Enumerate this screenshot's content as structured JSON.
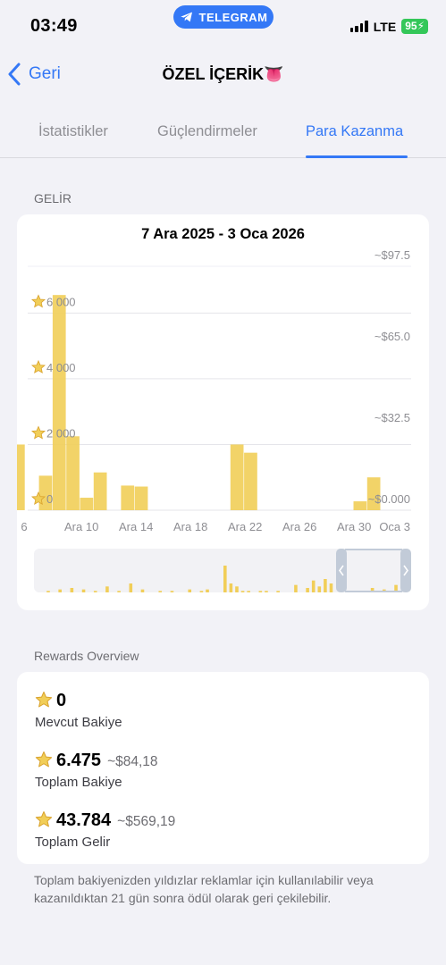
{
  "status_bar": {
    "time": "03:49",
    "telegram_pill": "TELEGRAM",
    "network": "LTE",
    "battery": "95"
  },
  "nav": {
    "back_label": "Geri",
    "title": "ÖZEL İÇERİK👅"
  },
  "tabs": [
    {
      "label": "İstatistikler",
      "active": false
    },
    {
      "label": "Güçlendirmeler",
      "active": false
    },
    {
      "label": "Para Kazanma",
      "active": true
    }
  ],
  "income_section": {
    "label": "GELİR"
  },
  "chart_data": {
    "type": "bar",
    "title": "7 Ara 2025 - 3 Oca 2026",
    "xlabel": "",
    "ylabel": "",
    "categories": [
      "6 Ara",
      "7 Ara",
      "8 Ara",
      "9 Ara",
      "10 Ara",
      "11 Ara",
      "12 Ara",
      "13 Ara",
      "14 Ara",
      "15 Ara",
      "16 Ara",
      "17 Ara",
      "18 Ara",
      "19 Ara",
      "20 Ara",
      "21 Ara",
      "22 Ara",
      "23 Ara",
      "24 Ara",
      "25 Ara",
      "26 Ara",
      "27 Ara",
      "28 Ara",
      "29 Ara",
      "30 Ara",
      "31 Ara",
      "1 Oca",
      "2 Oca",
      "3 Oca"
    ],
    "values": [
      2000,
      0,
      1050,
      6550,
      2250,
      380,
      1150,
      0,
      750,
      720,
      0,
      0,
      0,
      0,
      0,
      0,
      2000,
      1750,
      0,
      0,
      0,
      0,
      0,
      0,
      0,
      270,
      1000,
      0,
      0
    ],
    "x_tick_labels": [
      "6",
      "Ara 10",
      "Ara 14",
      "Ara 18",
      "Ara 22",
      "Ara 26",
      "Ara 30",
      "Oca 3"
    ],
    "left_axis": {
      "labels": [
        "0",
        "2 000",
        "4 000",
        "6 000"
      ],
      "ylim": [
        0,
        6500
      ]
    },
    "right_axis": {
      "labels": [
        "~$0.000",
        "~$32.5",
        "~$65.0",
        "~$97.5"
      ]
    },
    "grid": true,
    "bar_color": "#f1ce58",
    "navigator_values": [
      0,
      0,
      1,
      0,
      2,
      0,
      3,
      0,
      2,
      0,
      1,
      0,
      4,
      0,
      1,
      0,
      6,
      0,
      2,
      0,
      0,
      1,
      0,
      1,
      0,
      0,
      2,
      0,
      1,
      2,
      0,
      0,
      18,
      6,
      4,
      1,
      1,
      0,
      1,
      1,
      0,
      1,
      0,
      0,
      5,
      0,
      3,
      8,
      4,
      9,
      6,
      0,
      0,
      1,
      1,
      0,
      0,
      3,
      0,
      2,
      0,
      5,
      0,
      0
    ]
  },
  "rewards": {
    "section_label": "Rewards Overview",
    "items": [
      {
        "amount": "0",
        "usd": "",
        "label": "Mevcut Bakiye"
      },
      {
        "amount": "6.475",
        "usd": "~$84,18",
        "label": "Toplam Bakiye"
      },
      {
        "amount": "43.784",
        "usd": "~$569,19",
        "label": "Toplam Gelir"
      }
    ]
  },
  "footnote": "Toplam bakiyenizden yıldızlar reklamlar için kullanılabilir veya kazanıldıktan 21 gün sonra ödül olarak geri çekilebilir.",
  "colors": {
    "accent": "#3478f6",
    "star": "#f1ce58",
    "battery": "#34c759",
    "background": "#f2f2f7"
  }
}
